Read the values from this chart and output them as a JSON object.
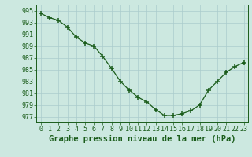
{
  "x": [
    0,
    1,
    2,
    3,
    4,
    5,
    6,
    7,
    8,
    9,
    10,
    11,
    12,
    13,
    14,
    15,
    16,
    17,
    18,
    19,
    20,
    21,
    22,
    23
  ],
  "y": [
    994.5,
    993.8,
    993.3,
    992.2,
    990.5,
    989.5,
    989.0,
    987.2,
    985.2,
    983.0,
    981.5,
    980.3,
    979.5,
    978.2,
    977.2,
    977.2,
    977.5,
    978.0,
    979.0,
    981.5,
    983.0,
    984.5,
    985.5,
    986.2
  ],
  "line_color": "#1a5c1a",
  "marker_color": "#1a5c1a",
  "bg_color": "#cce8e0",
  "grid_color": "#aacccc",
  "title": "Graphe pression niveau de la mer (hPa)",
  "xlabel_ticks": [
    "0",
    "1",
    "2",
    "3",
    "4",
    "5",
    "6",
    "7",
    "8",
    "9",
    "10",
    "11",
    "12",
    "13",
    "14",
    "15",
    "16",
    "17",
    "18",
    "19",
    "20",
    "21",
    "22",
    "23"
  ],
  "yticks": [
    977,
    979,
    981,
    983,
    985,
    987,
    989,
    991,
    993,
    995
  ],
  "ylim": [
    976,
    996
  ],
  "xlim": [
    -0.5,
    23.5
  ],
  "tick_color": "#1a5c1a",
  "title_color": "#1a5c1a",
  "title_fontsize": 7.5,
  "tick_fontsize": 6.0
}
